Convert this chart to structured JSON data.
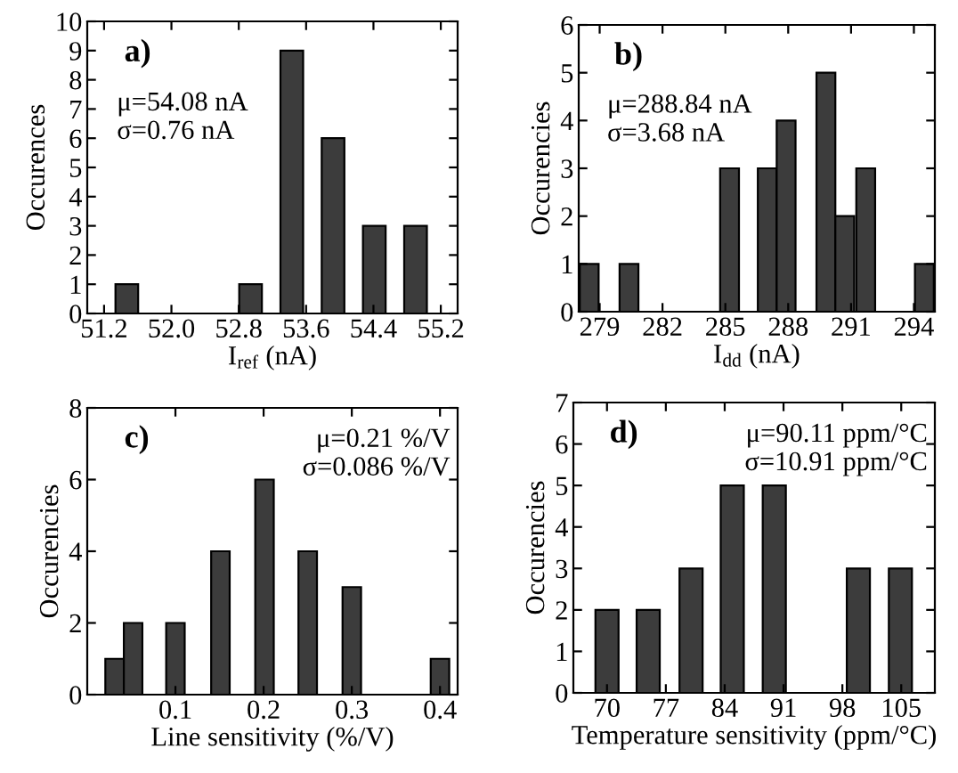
{
  "chart_data": [
    {
      "type": "bar",
      "x": [
        51.47,
        52.94,
        53.43,
        53.92,
        54.41,
        54.9
      ],
      "values": [
        1,
        1,
        9,
        6,
        3,
        3
      ],
      "color": "#3c3c3c",
      "xlim": [
        51.0,
        55.4
      ],
      "xticks": [
        51.2,
        {
          "value": 52,
          "label": "52.0"
        },
        52.8,
        53.6,
        54.4,
        55.2
      ],
      "ylim": [
        0,
        10
      ],
      "yticks": [
        0,
        1,
        2,
        3,
        4,
        5,
        6,
        7,
        8,
        9,
        10
      ],
      "xlabel": "I$_{ref}$ (nA)",
      "ylabel": "Occurences",
      "annotations": [
        "a)",
        "μ=54.08 nA\nσ=0.76 nA"
      ]
    },
    {
      "type": "bar",
      "x": [
        278.5,
        280.4,
        285.2,
        287.0,
        287.9,
        289.8,
        290.7,
        291.7,
        294.5
      ],
      "values": [
        1,
        1,
        3,
        3,
        4,
        5,
        2,
        3,
        1
      ],
      "color": "#3c3c3c",
      "xlim": [
        278,
        295
      ],
      "xticks": [
        279,
        282,
        285,
        288,
        291,
        294
      ],
      "ylim": [
        0,
        6
      ],
      "yticks": [
        0,
        1,
        2,
        3,
        4,
        5,
        6
      ],
      "xlabel": "I$_{dd}$ (nA)",
      "ylabel": "Occurencies",
      "annotations": [
        "b)",
        "μ=288.84 nA\nσ=3.68 nA"
      ]
    },
    {
      "type": "bar",
      "x": [
        0.031,
        0.052,
        0.1,
        0.151,
        0.201,
        0.25,
        0.3,
        0.4
      ],
      "values": [
        1,
        2,
        2,
        4,
        6,
        4,
        3,
        1
      ],
      "color": "#3c3c3c",
      "xlim": [
        0.0,
        0.42
      ],
      "xticks": [
        0.1,
        0.2,
        0.3,
        0.4
      ],
      "ylim": [
        0,
        8
      ],
      "yticks": [
        0,
        2,
        4,
        6,
        8
      ],
      "xlabel": "Line sensitivity (%/V)",
      "ylabel": "Occurencies",
      "annotations": [
        "c)",
        "μ=0.21 %/V\nσ=0.086 %/V"
      ]
    },
    {
      "type": "bar",
      "x": [
        70,
        74.9,
        80,
        84.9,
        89.9,
        99.9,
        104.9
      ],
      "values": [
        2,
        2,
        3,
        5,
        5,
        3,
        3
      ],
      "color": "#3c3c3c",
      "xlim": [
        66,
        109
      ],
      "xticks": [
        70,
        77,
        84,
        91,
        98,
        105
      ],
      "ylim": [
        0,
        7
      ],
      "yticks": [
        0,
        1,
        2,
        3,
        4,
        5,
        6,
        7
      ],
      "xlabel": "Temperature sensitivity (ppm/°C)",
      "ylabel": "Occurencies",
      "annotations": [
        "d)",
        "μ=90.11 ppm/°C\nσ=10.91 ppm/°C"
      ]
    }
  ]
}
